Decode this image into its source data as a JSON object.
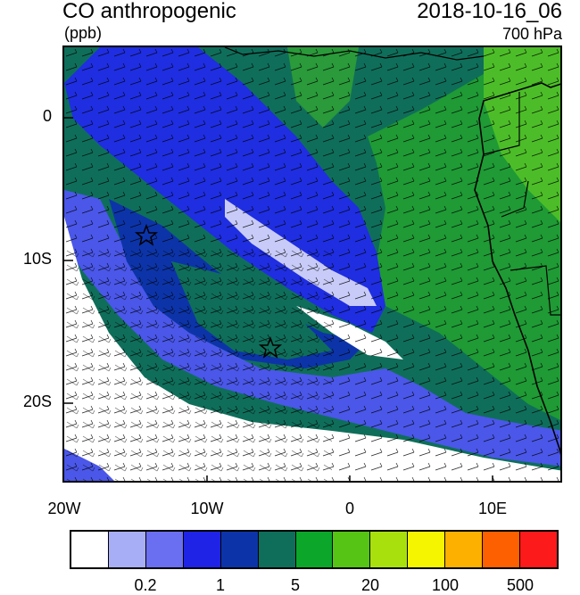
{
  "header": {
    "title": "CO anthropogenic",
    "units": "(ppb)",
    "datetime": "2018-10-16_06",
    "level": "700 hPa"
  },
  "axes": {
    "x_ticks": [
      "20W",
      "10W",
      "0",
      "10E"
    ],
    "y_ticks": [
      "0",
      "10S",
      "20S"
    ]
  },
  "colorbar": {
    "colors": [
      "#ffffff",
      "#a8aef5",
      "#6a6ef0",
      "#1f23e6",
      "#0c34a8",
      "#0f6e5a",
      "#0ba62a",
      "#55c415",
      "#a8e00e",
      "#f5f500",
      "#fdb000",
      "#fd6000",
      "#fd1a1a"
    ],
    "labels": [
      "0.2",
      "1",
      "5",
      "20",
      "100",
      "500"
    ]
  },
  "markers": [
    "star-1",
    "star-2"
  ]
}
